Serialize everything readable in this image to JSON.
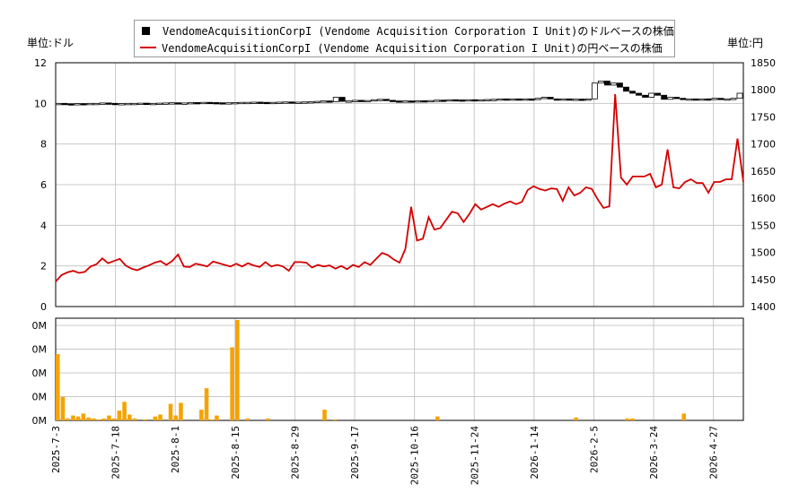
{
  "legend": {
    "usd_label": "VendomeAcquisitionCorpI (Vendome Acquisition Corporation I Unit)のドルベースの株価",
    "jpy_label": "VendomeAcquisitionCorpI (Vendome Acquisition Corporation I Unit)の円ベースの株価"
  },
  "units": {
    "left": "単位:ドル",
    "right": "単位:円"
  },
  "colors": {
    "usd": "#000000",
    "jpy": "#d40000",
    "volume": "#f5a300",
    "grid": "#c8c8c8"
  },
  "chart_data": [
    {
      "type": "line",
      "title": "",
      "x_labels": [
        "2025-7-3",
        "2025-7-18",
        "2025-8-1",
        "2025-8-15",
        "2025-8-29",
        "2025-9-17",
        "2025-10-16",
        "2025-11-24",
        "2026-1-14",
        "2026-2-5",
        "2026-3-24",
        "2026-4-27"
      ],
      "y_left": {
        "label": "単位:ドル",
        "ticks": [
          "0",
          "2",
          "4",
          "6",
          "8",
          "10",
          "12"
        ],
        "ylim": [
          0,
          12
        ]
      },
      "y_right": {
        "label": "単位:円",
        "ticks": [
          "1400",
          "1450",
          "1500",
          "1550",
          "1600",
          "1650",
          "1700",
          "1750",
          "1800",
          "1850"
        ],
        "ylim": [
          1400,
          1850
        ]
      },
      "grid": true,
      "legend_position": "top-center",
      "series": [
        {
          "name": "VendomeAcquisitionCorpI (Vendome Acquisition Corporation I Unit)のドルベースの株価",
          "axis": "left",
          "style": "candlestick",
          "values": [
            10.0,
            9.98,
            9.97,
            9.99,
            9.98,
            10.0,
            10.0,
            10.02,
            10.0,
            9.99,
            9.99,
            10.0,
            10.0,
            10.01,
            10.0,
            10.0,
            10.01,
            10.02,
            10.03,
            10.01,
            10.02,
            10.04,
            10.03,
            10.05,
            10.04,
            10.03,
            10.02,
            10.03,
            10.04,
            10.05,
            10.05,
            10.06,
            10.05,
            10.04,
            10.05,
            10.06,
            10.07,
            10.05,
            10.06,
            10.07,
            10.08,
            10.1,
            10.12,
            10.08,
            10.3,
            10.1,
            10.12,
            10.15,
            10.12,
            10.14,
            10.18,
            10.2,
            10.15,
            10.12,
            10.1,
            10.12,
            10.1,
            10.13,
            10.1,
            10.14,
            10.16,
            10.15,
            10.18,
            10.17,
            10.16,
            10.18,
            10.17,
            10.18,
            10.19,
            10.2,
            10.22,
            10.2,
            10.22,
            10.21,
            10.22,
            10.2,
            10.25,
            10.3,
            10.22,
            10.2,
            10.22,
            10.2,
            10.21,
            10.2,
            10.22,
            11.0,
            11.1,
            10.9,
            11.0,
            10.8,
            10.6,
            10.5,
            10.4,
            10.3,
            10.5,
            10.4,
            10.2,
            10.3,
            10.25,
            10.2,
            10.22,
            10.2,
            10.22,
            10.2,
            10.25,
            10.22,
            10.22,
            10.25,
            10.5
          ]
        },
        {
          "name": "VendomeAcquisitionCorpI (Vendome Acquisition Corporation I Unit)の円ベースの株価",
          "axis": "right",
          "style": "line",
          "values": [
            1446,
            1458,
            1463,
            1466,
            1462,
            1464,
            1474,
            1478,
            1489,
            1480,
            1484,
            1488,
            1476,
            1470,
            1467,
            1472,
            1476,
            1481,
            1484,
            1477,
            1484,
            1496,
            1474,
            1473,
            1479,
            1477,
            1474,
            1483,
            1480,
            1477,
            1474,
            1479,
            1474,
            1480,
            1476,
            1473,
            1482,
            1474,
            1477,
            1474,
            1466,
            1482,
            1482,
            1481,
            1472,
            1477,
            1474,
            1476,
            1470,
            1475,
            1469,
            1477,
            1473,
            1482,
            1477,
            1488,
            1499,
            1495,
            1487,
            1481,
            1506,
            1584,
            1522,
            1525,
            1565,
            1542,
            1545,
            1560,
            1575,
            1572,
            1556,
            1571,
            1589,
            1579,
            1584,
            1589,
            1584,
            1590,
            1594,
            1589,
            1593,
            1615,
            1622,
            1617,
            1614,
            1618,
            1617,
            1595,
            1620,
            1605,
            1610,
            1620,
            1617,
            1598,
            1582,
            1585,
            1792,
            1638,
            1625,
            1640,
            1640,
            1640,
            1645,
            1620,
            1625,
            1690,
            1620,
            1618,
            1630,
            1635,
            1628,
            1628,
            1610,
            1630,
            1630,
            1635,
            1635,
            1710,
            1630
          ]
        }
      ]
    },
    {
      "type": "bar",
      "title": "",
      "x_labels": [
        "2025-7-3",
        "2025-7-18",
        "2025-8-1",
        "2025-8-15",
        "2025-8-29",
        "2025-9-17",
        "2025-10-16",
        "2025-11-24",
        "2026-1-14",
        "2026-2-5",
        "2026-3-24",
        "2026-4-27"
      ],
      "y_ticks": [
        "0M",
        "0M",
        "0M",
        "0M",
        "0M"
      ],
      "grid": true,
      "series": [
        {
          "name": "",
          "values": [
            0.68,
            0.24,
            0.02,
            0.05,
            0.04,
            0.07,
            0.03,
            0.02,
            0.01,
            0.02,
            0.05,
            0.02,
            0.1,
            0.19,
            0.06,
            0.02,
            0.0,
            0.01,
            0.0,
            0.04,
            0.06,
            0.0,
            0.17,
            0.05,
            0.18,
            0.0,
            0.0,
            0.0,
            0.11,
            0.33,
            0.01,
            0.05,
            0.0,
            0.0,
            0.75,
            1.03,
            0.0,
            0.02,
            0.0,
            0.0,
            0.0,
            0.02,
            0.0,
            0.0,
            0.0,
            0.0,
            0.0,
            0.0,
            0.0,
            0.0,
            0.0,
            0.0,
            0.11,
            0.0,
            0.01,
            0.0,
            0.0,
            0.0,
            0.0,
            0.0,
            0.0,
            0.0,
            0.0,
            0.0,
            0.0,
            0.0,
            0.0,
            0.0,
            0.0,
            0.0,
            0.0,
            0.0,
            0.0,
            0.0,
            0.04,
            0.0,
            0.0,
            0.0,
            0.0,
            0.0,
            0.0,
            0.0,
            0.0,
            0.0,
            0.0,
            0.0,
            0.0,
            0.0,
            0.0,
            0.0,
            0.0,
            0.0,
            0.0,
            0.0,
            0.0,
            0.0,
            0.0,
            0.0,
            0.0,
            0.0,
            0.0,
            0.03,
            0.0,
            0.0,
            0.0,
            0.0,
            0.0,
            0.0,
            0.0,
            0.0,
            0.0,
            0.02,
            0.02,
            0.0,
            0.0,
            0.0,
            0.0,
            0.0,
            0.0,
            0.0,
            0.0,
            0.0,
            0.07,
            0.0,
            0.0,
            0.0,
            0.0,
            0.0,
            0.0,
            0.0,
            0.0,
            0.0,
            0.0,
            0.0
          ]
        }
      ]
    }
  ]
}
